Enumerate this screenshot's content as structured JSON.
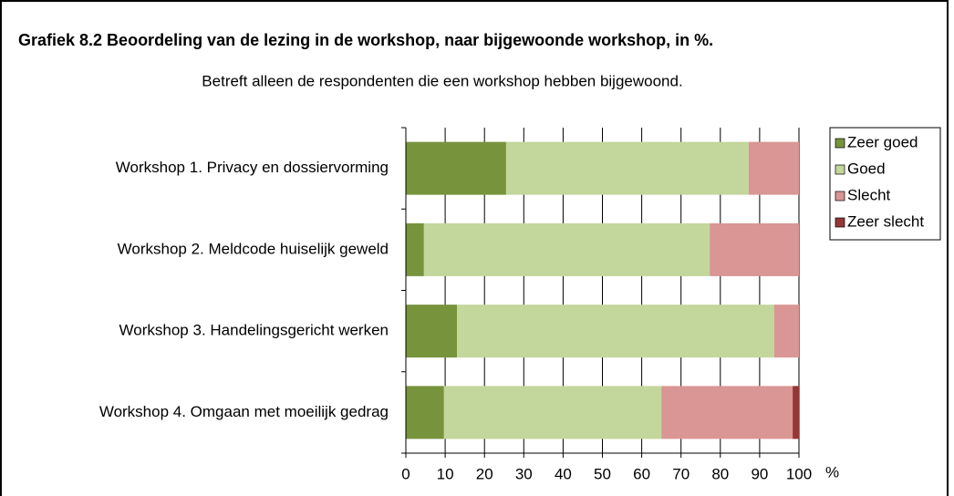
{
  "chart_data": {
    "type": "stacked_barh",
    "title": "Grafiek 8.2  Beoordeling van de lezing in de workshop, naar bijgewoonde workshop, in %.",
    "subtitle": "Betreft alleen de respondenten die een workshop hebben bijgewoond.",
    "xlabel": "%",
    "categories": [
      "Workshop 1. Privacy en dossiervorming",
      "Workshop 2. Meldcode huiselijk geweld",
      "Workshop 3. Handelingsgericht werken",
      "Workshop 4. Omgaan met moeilijk gedrag"
    ],
    "series": [
      {
        "name": "Zeer goed",
        "color": "#77933c",
        "values": [
          25.5,
          4.6,
          13.0,
          9.7
        ]
      },
      {
        "name": "Goed",
        "color": "#c3d69b",
        "values": [
          61.7,
          72.7,
          80.7,
          55.3
        ]
      },
      {
        "name": "Slecht",
        "color": "#d99694",
        "values": [
          12.8,
          22.7,
          6.3,
          33.4
        ]
      },
      {
        "name": "Zeer slecht",
        "color": "#953735",
        "values": [
          0,
          0,
          0,
          1.6
        ]
      }
    ],
    "xlim": [
      0,
      100
    ],
    "xticks": [
      0,
      10,
      20,
      30,
      40,
      50,
      60,
      70,
      80,
      90,
      100
    ],
    "grid": true,
    "legend": "right"
  }
}
